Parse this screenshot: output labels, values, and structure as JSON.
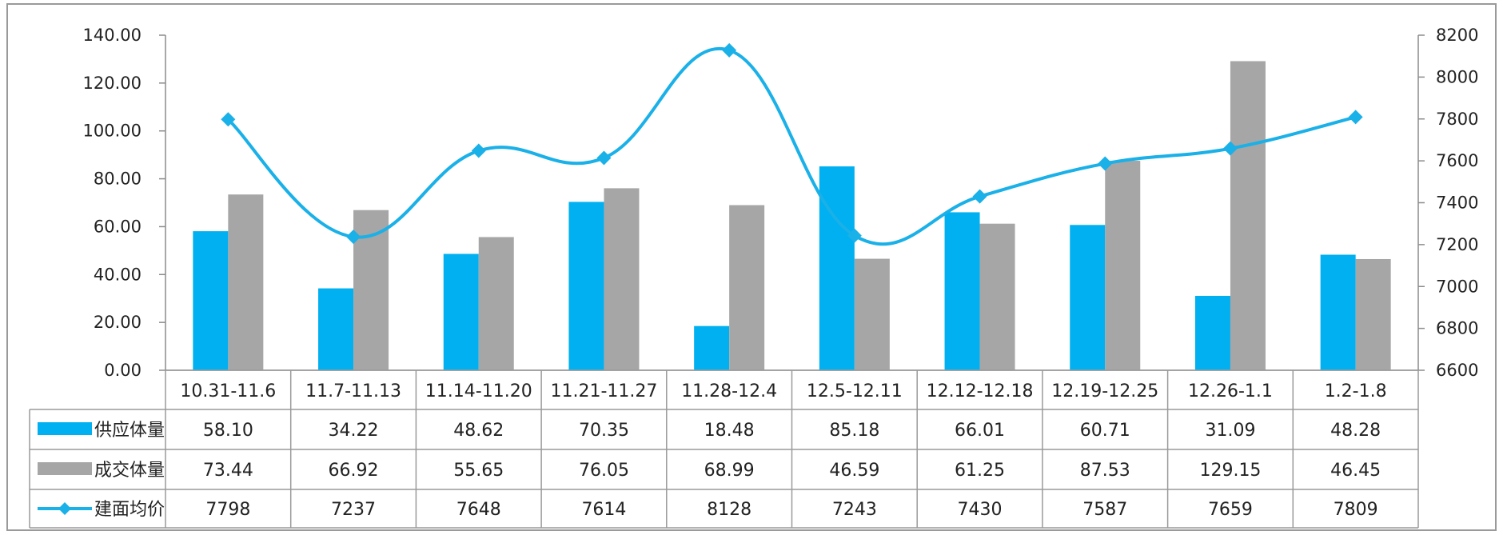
{
  "chart_data": {
    "type": "bar",
    "categories": [
      "10.31-11.6",
      "11.7-11.13",
      "11.14-11.20",
      "11.21-11.27",
      "11.28-12.4",
      "12.5-12.11",
      "12.12-12.18",
      "12.19-12.25",
      "12.26-1.1",
      "1.2-1.8"
    ],
    "series": [
      {
        "name": "供应体量",
        "type": "bar",
        "axis": "left",
        "color": "#00b0f0",
        "values": [
          58.1,
          34.22,
          48.62,
          70.35,
          18.48,
          85.18,
          66.01,
          60.71,
          31.09,
          48.28
        ],
        "labels": [
          "58.10",
          "34.22",
          "48.62",
          "70.35",
          "18.48",
          "85.18",
          "66.01",
          "60.71",
          "31.09",
          "48.28"
        ]
      },
      {
        "name": "成交体量",
        "type": "bar",
        "axis": "left",
        "color": "#a6a6a6",
        "values": [
          73.44,
          66.92,
          55.65,
          76.05,
          68.99,
          46.59,
          61.25,
          87.53,
          129.15,
          46.45
        ],
        "labels": [
          "73.44",
          "66.92",
          "55.65",
          "76.05",
          "68.99",
          "46.59",
          "61.25",
          "87.53",
          "129.15",
          "46.45"
        ]
      },
      {
        "name": "建面均价",
        "type": "line",
        "axis": "right",
        "color": "#1ab0e8",
        "smooth": true,
        "marker": "diamond",
        "values": [
          7798,
          7237,
          7648,
          7614,
          8128,
          7243,
          7430,
          7587,
          7659,
          7809
        ],
        "labels": [
          "7798",
          "7237",
          "7648",
          "7614",
          "8128",
          "7243",
          "7430",
          "7587",
          "7659",
          "7809"
        ]
      }
    ],
    "ylim": [
      0,
      140
    ],
    "y_ticks": [
      "0.00",
      "20.00",
      "40.00",
      "60.00",
      "80.00",
      "100.00",
      "120.00",
      "140.00"
    ],
    "y2lim": [
      6600,
      8200
    ],
    "y2_ticks": [
      "6600",
      "6800",
      "7000",
      "7200",
      "7400",
      "7600",
      "7800",
      "8000",
      "8200"
    ],
    "grid": false,
    "legend": "data-table"
  }
}
